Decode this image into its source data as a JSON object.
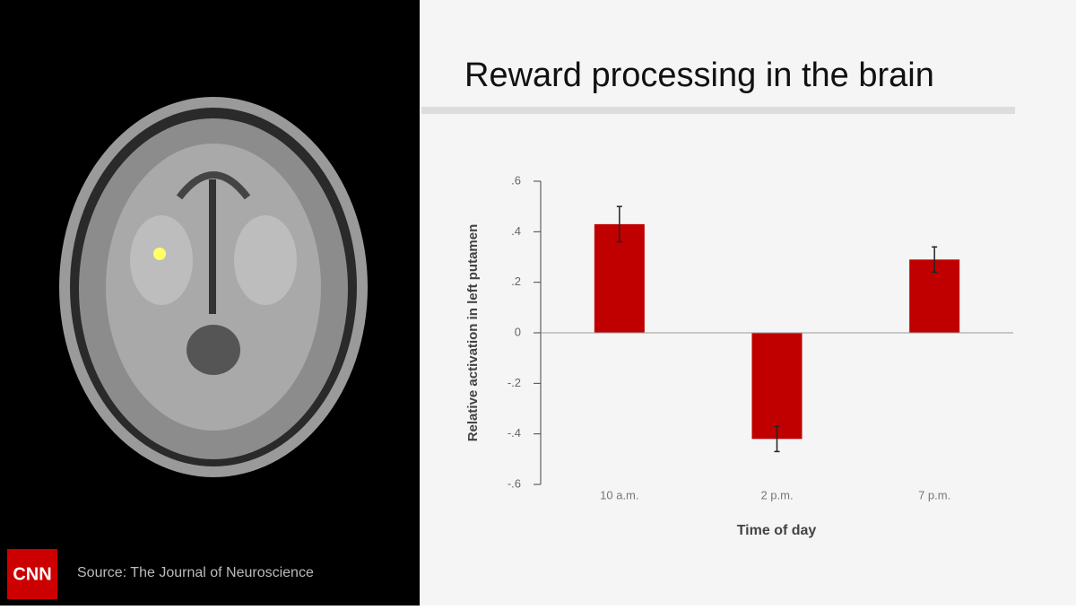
{
  "chart_data": {
    "type": "bar",
    "title": "Reward processing in the brain",
    "y_label": "Relative activation in left putamen",
    "x_label": "Time of day",
    "categories": [
      "10 a.m.",
      "2 p.m.",
      "7 p.m."
    ],
    "values": [
      0.43,
      -0.42,
      0.29
    ],
    "errors": [
      0.07,
      0.05,
      0.05
    ],
    "color": "#c00000",
    "ylim": [
      -0.6,
      0.6
    ],
    "yticks": [
      {
        "value": -0.6,
        "label": "-.6"
      },
      {
        "value": -0.4,
        "label": "-.4"
      },
      {
        "value": -0.2,
        "label": "-.2"
      },
      0,
      {
        "value": 0.2,
        "label": ".2"
      },
      {
        "value": 0.4,
        "label": ".4"
      },
      {
        "value": 0.6,
        "label": ".6"
      }
    ],
    "zero_line": true
  },
  "branding": {
    "logo": "CNN",
    "source": "Source: The Journal of Neuroscience"
  }
}
